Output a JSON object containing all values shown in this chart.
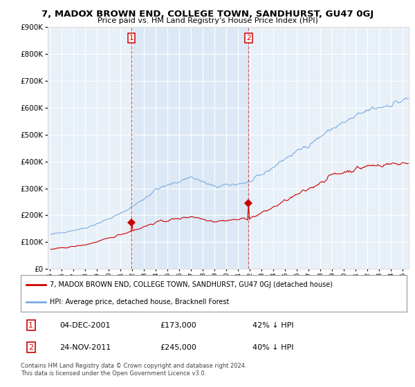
{
  "title": "7, MADOX BROWN END, COLLEGE TOWN, SANDHURST, GU47 0GJ",
  "subtitle": "Price paid vs. HM Land Registry's House Price Index (HPI)",
  "legend_label_red": "7, MADOX BROWN END, COLLEGE TOWN, SANDHURST, GU47 0GJ (detached house)",
  "legend_label_blue": "HPI: Average price, detached house, Bracknell Forest",
  "footnote": "Contains HM Land Registry data © Crown copyright and database right 2024.\nThis data is licensed under the Open Government Licence v3.0.",
  "sale1_date": "04-DEC-2001",
  "sale1_price": 173000,
  "sale1_hpi_pct": "42% ↓ HPI",
  "sale2_date": "24-NOV-2011",
  "sale2_price": 245000,
  "sale2_hpi_pct": "40% ↓ HPI",
  "ylim": [
    0,
    900000
  ],
  "yticks": [
    0,
    100000,
    200000,
    300000,
    400000,
    500000,
    600000,
    700000,
    800000,
    900000
  ],
  "background_color": "#ffffff",
  "plot_bg_color": "#e8f0f8",
  "grid_color": "#ffffff",
  "red_color": "#cc0000",
  "blue_color": "#7aade0",
  "shade_color": "#dce8f5",
  "sale1_x": 2001.917,
  "sale2_x": 2011.875
}
